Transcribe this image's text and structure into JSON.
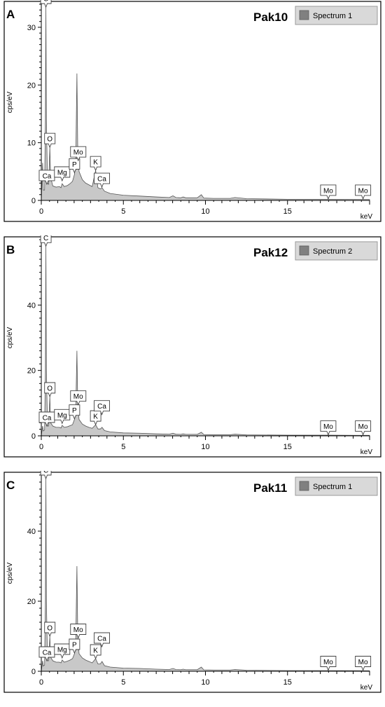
{
  "chart_data": [
    {
      "type": "area",
      "panel_letter": "A",
      "title": "Pak10",
      "legend": {
        "label": "Spectrum 1",
        "swatch_color": "#808080"
      },
      "xlabel": "keV",
      "ylabel": "cps/eV",
      "xlim": [
        0,
        20
      ],
      "ylim": [
        0,
        34
      ],
      "xticks": [
        0,
        5,
        10,
        15
      ],
      "yticks": [
        0,
        10,
        20,
        30
      ],
      "fill_color": "#c8c8c8",
      "spectrum": [
        [
          0,
          0
        ],
        [
          0.08,
          6.5
        ],
        [
          0.12,
          1.8
        ],
        [
          0.2,
          1.8
        ],
        [
          0.25,
          14
        ],
        [
          0.28,
          33.5
        ],
        [
          0.31,
          14
        ],
        [
          0.38,
          3
        ],
        [
          0.45,
          2.8
        ],
        [
          0.52,
          9.2
        ],
        [
          0.57,
          4
        ],
        [
          0.7,
          2.5
        ],
        [
          0.9,
          2.3
        ],
        [
          1.1,
          2.4
        ],
        [
          1.2,
          2.2
        ],
        [
          1.27,
          2.9
        ],
        [
          1.4,
          2.4
        ],
        [
          1.6,
          2.6
        ],
        [
          1.75,
          2.9
        ],
        [
          1.9,
          3.3
        ],
        [
          2.02,
          4.5
        ],
        [
          2.1,
          7
        ],
        [
          2.17,
          22
        ],
        [
          2.22,
          9
        ],
        [
          2.3,
          5
        ],
        [
          2.5,
          3.6
        ],
        [
          2.7,
          3
        ],
        [
          2.9,
          2.7
        ],
        [
          3.1,
          2.4
        ],
        [
          3.31,
          5.2
        ],
        [
          3.45,
          2.2
        ],
        [
          3.6,
          2
        ],
        [
          3.7,
          2.2
        ],
        [
          3.85,
          1.6
        ],
        [
          4.2,
          1.2
        ],
        [
          5,
          0.9
        ],
        [
          6,
          0.75
        ],
        [
          7,
          0.6
        ],
        [
          7.8,
          0.5
        ],
        [
          8.02,
          0.8
        ],
        [
          8.2,
          0.5
        ],
        [
          8.5,
          0.45
        ],
        [
          8.64,
          0.6
        ],
        [
          8.8,
          0.45
        ],
        [
          9.5,
          0.45
        ],
        [
          9.75,
          1.0
        ],
        [
          9.9,
          0.4
        ],
        [
          10.5,
          0.35
        ],
        [
          11.5,
          0.35
        ],
        [
          11.8,
          0.5
        ],
        [
          12.5,
          0.3
        ],
        [
          15,
          0.2
        ],
        [
          17.5,
          0.2
        ],
        [
          20,
          0.15
        ]
      ],
      "annotations": [
        {
          "label": "C",
          "x": 0.28,
          "y": 33.5
        },
        {
          "label": "O",
          "x": 0.52,
          "y": 9.2
        },
        {
          "label": "Ca",
          "x": 0.34,
          "y": 2.8
        },
        {
          "label": "Mg",
          "x": 1.27,
          "y": 3.4
        },
        {
          "label": "P",
          "x": 2.02,
          "y": 4.8
        },
        {
          "label": "Mo",
          "x": 2.25,
          "y": 6.9
        },
        {
          "label": "K",
          "x": 3.31,
          "y": 5.2
        },
        {
          "label": "Ca",
          "x": 3.69,
          "y": 2.3
        },
        {
          "label": "Mo",
          "x": 17.48,
          "y": 0.25
        },
        {
          "label": "Mo",
          "x": 19.6,
          "y": 0.25
        }
      ]
    },
    {
      "type": "area",
      "panel_letter": "B",
      "title": "Pak12",
      "legend": {
        "label": "Spectrum 2",
        "swatch_color": "#808080"
      },
      "xlabel": "keV",
      "ylabel": "cps/eV",
      "xlim": [
        0,
        20
      ],
      "ylim": [
        0,
        60
      ],
      "xticks": [
        0,
        5,
        10,
        15
      ],
      "yticks": [
        0,
        20,
        40
      ],
      "fill_color": "#c8c8c8",
      "spectrum": [
        [
          0,
          0
        ],
        [
          0.08,
          3
        ],
        [
          0.12,
          1.5
        ],
        [
          0.2,
          1.8
        ],
        [
          0.25,
          20
        ],
        [
          0.28,
          58
        ],
        [
          0.31,
          20
        ],
        [
          0.38,
          3
        ],
        [
          0.45,
          3
        ],
        [
          0.52,
          12
        ],
        [
          0.57,
          4
        ],
        [
          0.7,
          3
        ],
        [
          0.9,
          2.6
        ],
        [
          1.1,
          2.6
        ],
        [
          1.2,
          2.4
        ],
        [
          1.27,
          3.2
        ],
        [
          1.4,
          2.6
        ],
        [
          1.6,
          2.8
        ],
        [
          1.75,
          3.1
        ],
        [
          1.9,
          3.4
        ],
        [
          2.02,
          5
        ],
        [
          2.1,
          8
        ],
        [
          2.17,
          26
        ],
        [
          2.22,
          10
        ],
        [
          2.3,
          5
        ],
        [
          2.5,
          3.6
        ],
        [
          2.7,
          3
        ],
        [
          2.9,
          2.6
        ],
        [
          3.1,
          2.3
        ],
        [
          3.31,
          3.4
        ],
        [
          3.45,
          2.1
        ],
        [
          3.6,
          2.1
        ],
        [
          3.7,
          2.6
        ],
        [
          3.85,
          1.6
        ],
        [
          4.2,
          1.2
        ],
        [
          5,
          0.9
        ],
        [
          6,
          0.8
        ],
        [
          7,
          0.6
        ],
        [
          7.8,
          0.5
        ],
        [
          8.02,
          0.8
        ],
        [
          8.2,
          0.5
        ],
        [
          8.5,
          0.45
        ],
        [
          8.64,
          0.6
        ],
        [
          8.8,
          0.45
        ],
        [
          9.5,
          0.45
        ],
        [
          9.75,
          1.1
        ],
        [
          9.9,
          0.4
        ],
        [
          10.5,
          0.35
        ],
        [
          11.5,
          0.35
        ],
        [
          11.8,
          0.5
        ],
        [
          12.5,
          0.3
        ],
        [
          15,
          0.2
        ],
        [
          17.5,
          0.2
        ],
        [
          20,
          0.15
        ]
      ],
      "annotations": [
        {
          "label": "C",
          "x": 0.28,
          "y": 58
        },
        {
          "label": "O",
          "x": 0.52,
          "y": 12
        },
        {
          "label": "Ca",
          "x": 0.34,
          "y": 3
        },
        {
          "label": "Mg",
          "x": 1.27,
          "y": 3.8
        },
        {
          "label": "P",
          "x": 2.02,
          "y": 5.2
        },
        {
          "label": "Mo",
          "x": 2.25,
          "y": 9.5
        },
        {
          "label": "K",
          "x": 3.31,
          "y": 3.4
        },
        {
          "label": "Ca",
          "x": 3.69,
          "y": 6.5
        },
        {
          "label": "Mo",
          "x": 17.48,
          "y": 0.3
        },
        {
          "label": "Mo",
          "x": 19.6,
          "y": 0.3
        }
      ]
    },
    {
      "type": "area",
      "panel_letter": "C",
      "title": "Pak11",
      "legend": {
        "label": "Spectrum 1",
        "swatch_color": "#808080"
      },
      "xlabel": "keV",
      "ylabel": "cps/eV",
      "xlim": [
        0,
        20
      ],
      "ylim": [
        0,
        56
      ],
      "xticks": [
        0,
        5,
        10,
        15
      ],
      "yticks": [
        0,
        20,
        40
      ],
      "fill_color": "#c8c8c8",
      "spectrum": [
        [
          0,
          0
        ],
        [
          0.08,
          3
        ],
        [
          0.12,
          1.5
        ],
        [
          0.2,
          1.8
        ],
        [
          0.25,
          20
        ],
        [
          0.28,
          55
        ],
        [
          0.31,
          20
        ],
        [
          0.38,
          3
        ],
        [
          0.45,
          3
        ],
        [
          0.52,
          10
        ],
        [
          0.57,
          4
        ],
        [
          0.7,
          3
        ],
        [
          0.9,
          2.6
        ],
        [
          1.1,
          2.6
        ],
        [
          1.2,
          2.4
        ],
        [
          1.27,
          3.2
        ],
        [
          1.4,
          2.6
        ],
        [
          1.6,
          2.9
        ],
        [
          1.75,
          3.2
        ],
        [
          1.9,
          3.6
        ],
        [
          2.02,
          5
        ],
        [
          2.1,
          9
        ],
        [
          2.17,
          30
        ],
        [
          2.22,
          11
        ],
        [
          2.3,
          5
        ],
        [
          2.5,
          3.8
        ],
        [
          2.7,
          3.2
        ],
        [
          2.9,
          2.8
        ],
        [
          3.1,
          2.4
        ],
        [
          3.31,
          3.6
        ],
        [
          3.45,
          2.1
        ],
        [
          3.6,
          2.1
        ],
        [
          3.7,
          2.8
        ],
        [
          3.85,
          1.6
        ],
        [
          4.2,
          1.2
        ],
        [
          5,
          0.9
        ],
        [
          6,
          0.8
        ],
        [
          7,
          0.6
        ],
        [
          7.8,
          0.5
        ],
        [
          8.02,
          0.8
        ],
        [
          8.2,
          0.5
        ],
        [
          8.5,
          0.45
        ],
        [
          8.64,
          0.6
        ],
        [
          8.8,
          0.45
        ],
        [
          9.5,
          0.45
        ],
        [
          9.75,
          1.2
        ],
        [
          9.9,
          0.4
        ],
        [
          10.5,
          0.35
        ],
        [
          11.5,
          0.35
        ],
        [
          11.8,
          0.5
        ],
        [
          12.5,
          0.3
        ],
        [
          15,
          0.2
        ],
        [
          17.5,
          0.2
        ],
        [
          20,
          0.15
        ]
      ],
      "annotations": [
        {
          "label": "C",
          "x": 0.28,
          "y": 55
        },
        {
          "label": "O",
          "x": 0.52,
          "y": 10
        },
        {
          "label": "Ca",
          "x": 0.34,
          "y": 3
        },
        {
          "label": "Mg",
          "x": 1.27,
          "y": 3.8
        },
        {
          "label": "P",
          "x": 2.02,
          "y": 5.2
        },
        {
          "label": "Mo",
          "x": 2.25,
          "y": 9.5
        },
        {
          "label": "K",
          "x": 3.31,
          "y": 3.6
        },
        {
          "label": "Ca",
          "x": 3.69,
          "y": 7
        },
        {
          "label": "Mo",
          "x": 17.48,
          "y": 0.3
        },
        {
          "label": "Mo",
          "x": 19.6,
          "y": 0.3
        }
      ]
    }
  ]
}
